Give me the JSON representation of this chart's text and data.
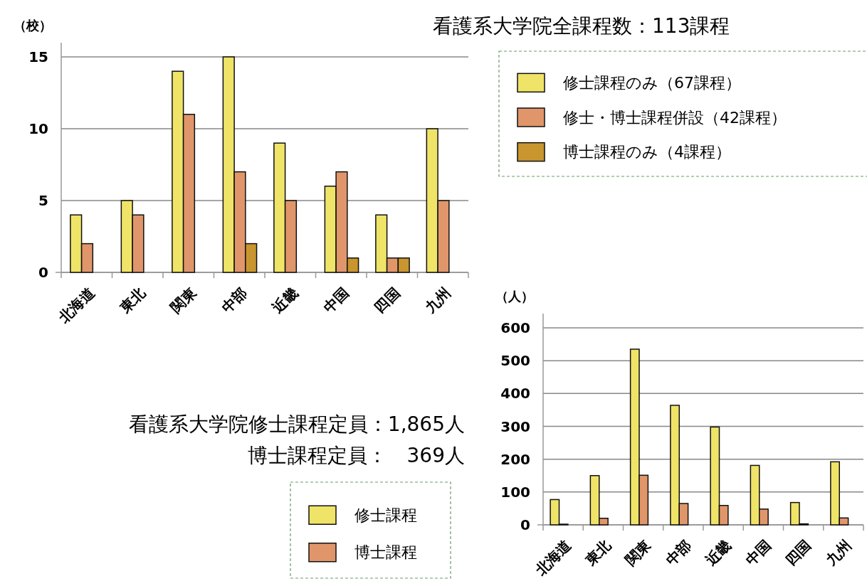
{
  "chart_data": [
    {
      "type": "bar",
      "title": "看護系大学院全課程数：113課程",
      "ylabel": "（校）",
      "categories": [
        "北海道",
        "東北",
        "関東",
        "中部",
        "近畿",
        "中国",
        "四国",
        "九州"
      ],
      "series": [
        {
          "name": "修士課程のみ（67課程）",
          "color": "#f0e468",
          "values": [
            4,
            5,
            14,
            15,
            9,
            6,
            4,
            10
          ]
        },
        {
          "name": "修士・博士課程併設（42課程）",
          "color": "#e0966a",
          "values": [
            2,
            4,
            11,
            7,
            5,
            7,
            1,
            5
          ]
        },
        {
          "name": "博士課程のみ（4課程）",
          "color": "#c8952e",
          "values": [
            0,
            0,
            0,
            2,
            0,
            1,
            1,
            0
          ]
        }
      ],
      "ylim": [
        0,
        15
      ],
      "yticks": [
        0,
        5,
        10,
        15
      ],
      "grid": "y",
      "legend": "top right"
    },
    {
      "type": "bar",
      "title": "看護系大学院修士課程定員：1,865人",
      "subtitle": "博士課程定員：　369人",
      "ylabel": "（人）",
      "categories": [
        "北海道",
        "東北",
        "関東",
        "中部",
        "近畿",
        "中国",
        "四国",
        "九州"
      ],
      "series": [
        {
          "name": "修士課程",
          "color": "#f0e468",
          "values": [
            77,
            150,
            535,
            364,
            298,
            181,
            68,
            192
          ]
        },
        {
          "name": "博士課程",
          "color": "#e0966a",
          "values": [
            2,
            20,
            151,
            65,
            59,
            48,
            3,
            21
          ]
        }
      ],
      "ylim": [
        0,
        600
      ],
      "yticks": [
        0,
        100,
        200,
        300,
        400,
        500,
        600
      ],
      "grid": "y",
      "legend": "left"
    }
  ]
}
